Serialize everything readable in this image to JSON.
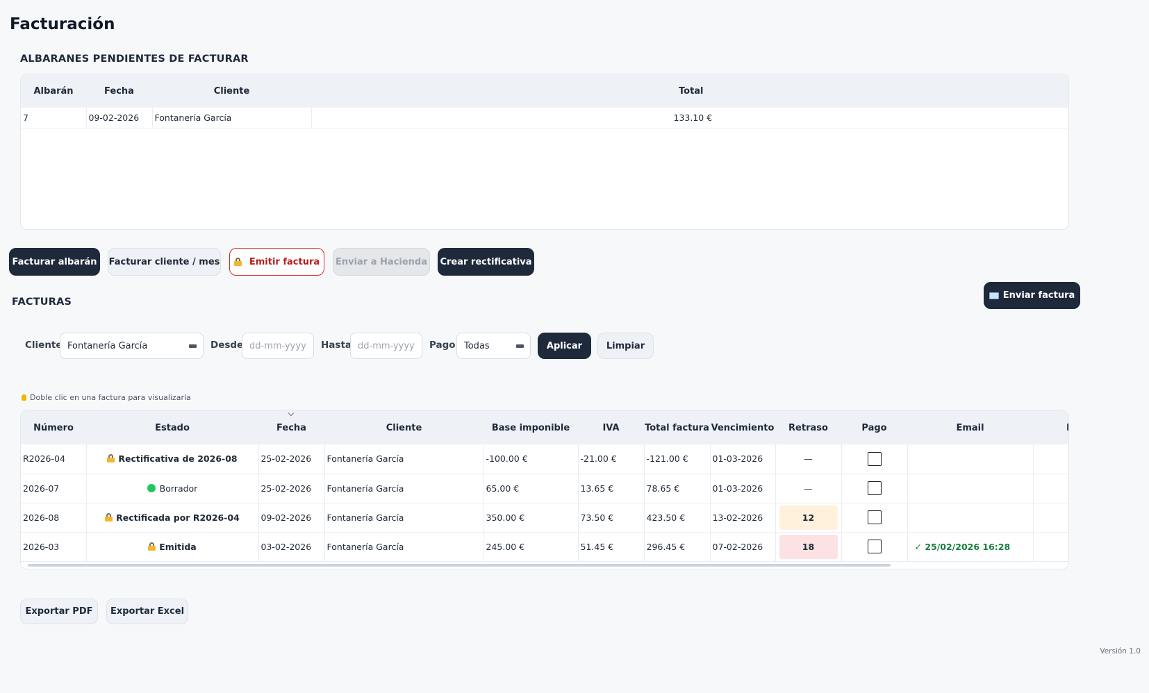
{
  "page": {
    "title": "Facturación",
    "version": "Versión 1.0"
  },
  "pending": {
    "title": "ALBARANES PENDIENTES DE FACTURAR",
    "columns": [
      "Albarán",
      "Fecha",
      "Cliente",
      "Total"
    ],
    "rows": [
      {
        "albaran": "7",
        "fecha": "09-02-2026",
        "cliente": "Fontanería García",
        "total": "133.10 €"
      }
    ]
  },
  "actions": {
    "facturar_albaran": "Facturar albarán",
    "facturar_cliente_mes": "Facturar cliente / mes",
    "emitir_factura": "Emitir factura",
    "enviar_hacienda": "Enviar a Hacienda",
    "crear_rectificativa": "Crear rectificativa",
    "enviar_factura": "Enviar factura"
  },
  "invoices": {
    "title": "FACTURAS",
    "filters": {
      "cliente_label": "Cliente",
      "cliente_value": "Fontanería García",
      "desde_label": "Desde",
      "desde_placeholder": "dd-mm-yyyy",
      "hasta_label": "Hasta",
      "hasta_placeholder": "dd-mm-yyyy",
      "pago_label": "Pago",
      "pago_value": "Todas",
      "aplicar": "Aplicar",
      "limpiar": "Limpiar"
    },
    "hint": "Doble clic en una factura para visualizarla",
    "columns": [
      "Número",
      "Estado",
      "Fecha",
      "Cliente",
      "Base imponible",
      "IVA",
      "Total factura",
      "Vencimiento",
      "Retraso",
      "Pago",
      "Email",
      "H"
    ],
    "sorted_column": "Fecha",
    "rows": [
      {
        "numero": "R2026-04",
        "estado": "Rectificativa de 2026-08",
        "estado_icon": "lock-icon",
        "fecha": "25-02-2026",
        "cliente": "Fontanería García",
        "base": "-100.00 €",
        "iva": "-21.00 €",
        "total": "-121.00 €",
        "vencimiento": "01-03-2026",
        "retraso": "—",
        "retraso_level": "none",
        "pago": false,
        "email": ""
      },
      {
        "numero": "2026-07",
        "estado": "Borrador",
        "estado_icon": "green-dot-icon",
        "fecha": "25-02-2026",
        "cliente": "Fontanería García",
        "base": "65.00 €",
        "iva": "13.65 €",
        "total": "78.65 €",
        "vencimiento": "01-03-2026",
        "retraso": "—",
        "retraso_level": "none",
        "pago": false,
        "email": ""
      },
      {
        "numero": "2026-08",
        "estado": "Rectificada por R2026-04",
        "estado_icon": "lock-icon",
        "fecha": "09-02-2026",
        "cliente": "Fontanería García",
        "base": "350.00 €",
        "iva": "73.50 €",
        "total": "423.50 €",
        "vencimiento": "13-02-2026",
        "retraso": "12",
        "retraso_level": "warning",
        "pago": false,
        "email": ""
      },
      {
        "numero": "2026-03",
        "estado": "Emitida",
        "estado_icon": "lock-icon",
        "fecha": "03-02-2026",
        "cliente": "Fontanería García",
        "base": "245.00 €",
        "iva": "51.45 €",
        "total": "296.45 €",
        "vencimiento": "07-02-2026",
        "retraso": "18",
        "retraso_level": "danger",
        "pago": false,
        "email": "✓ 25/02/2026 16:28"
      }
    ]
  },
  "exports": {
    "pdf": "Exportar PDF",
    "excel": "Exportar Excel"
  },
  "colors": {
    "primary": "#1e293b",
    "danger": "#b91c1c",
    "warning_bg": "#fff1dc",
    "danger_bg": "#fde2e4",
    "success": "#15803d",
    "draft": "#22c55e"
  }
}
